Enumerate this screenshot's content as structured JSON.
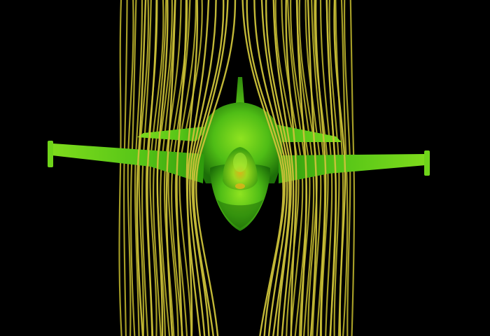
{
  "scene": {
    "subject": "fighter-jet",
    "view": "front",
    "colors": {
      "background": "#000000",
      "streamline": "#cdc23a",
      "streamline_shade": "#8f8a1e",
      "body_light": "#8ce41e",
      "body_mid": "#4dbb16",
      "body_dark": "#1f7a08",
      "stagnation": "#d6b51a"
    }
  }
}
